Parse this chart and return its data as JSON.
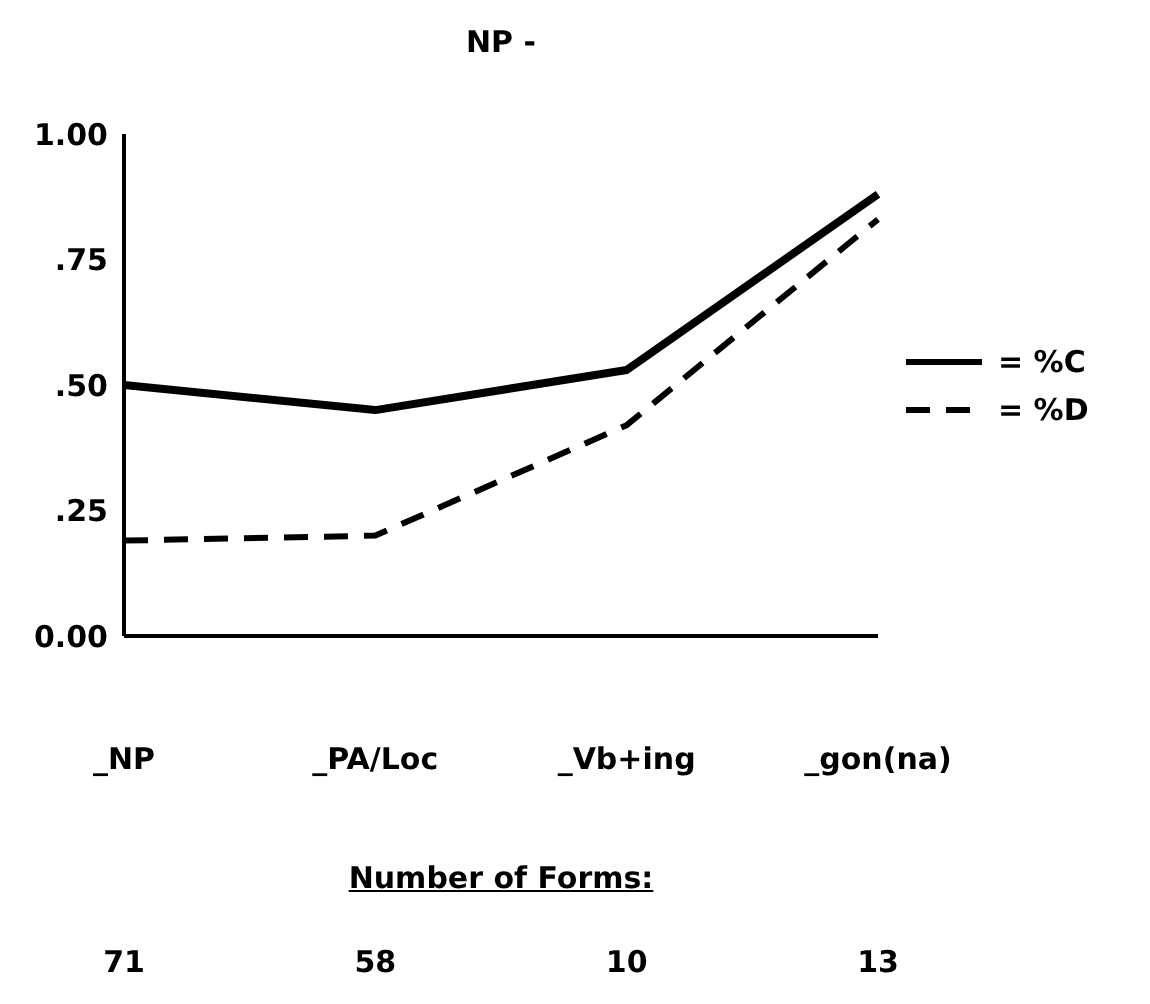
{
  "chart_data": {
    "type": "line",
    "title": "NP -",
    "categories": [
      "_NP",
      "_PA/Loc",
      "_Vb+ing",
      "_gon(na)"
    ],
    "series": [
      {
        "name": "= %C",
        "color": "#000000",
        "values": [
          0.5,
          0.45,
          0.53,
          0.88
        ],
        "line_style": "solid"
      },
      {
        "name": "= %D",
        "color": "#000000",
        "values": [
          0.19,
          0.2,
          0.42,
          0.83
        ],
        "line_style": "dashed"
      }
    ],
    "ylim": [
      0,
      1
    ],
    "yticks": [
      {
        "value": 0,
        "label": "0.00"
      },
      {
        "value": 0.25,
        "label": ".25"
      },
      {
        "value": 0.5,
        "label": ".50"
      },
      {
        "value": 0.75,
        "label": ".75"
      },
      {
        "value": 1,
        "label": "1.00"
      }
    ],
    "grid": false,
    "legend": "right",
    "marker": "none",
    "annotations": [
      "Number of Forms:",
      "71",
      "58",
      "10",
      "13"
    ]
  }
}
